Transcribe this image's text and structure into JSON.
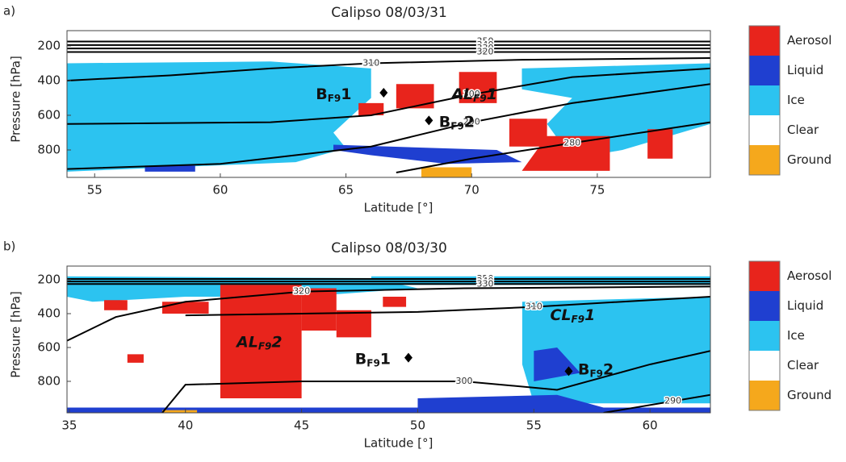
{
  "chart_data": [
    {
      "type": "curtain",
      "panel_label": "a)",
      "title": "Calipso 08/03/31",
      "xlabel": "Latitude [°]",
      "ylabel": "Pressure [hPa]",
      "xlim": [
        53.9,
        79.5
      ],
      "xticks": [
        55,
        60,
        65,
        70,
        75
      ],
      "ylim": [
        958,
        112
      ],
      "yticks": [
        200,
        400,
        600,
        800
      ],
      "legend": {
        "categories": [
          "Aerosol",
          "Liquid",
          "Ice",
          "Clear",
          "Ground"
        ],
        "colors": [
          "#e8241c",
          "#1f3fd0",
          "#2cc3f0",
          "#ffffff",
          "#f5a81c"
        ]
      },
      "regions": [
        {
          "class": 2,
          "points": [
            [
              53.9,
              300
            ],
            [
              62,
              290
            ],
            [
              66,
              330
            ],
            [
              66,
              500
            ],
            [
              64.5,
              700
            ],
            [
              65,
              790
            ],
            [
              63,
              870
            ],
            [
              58,
              900
            ],
            [
              53.9,
              925
            ]
          ]
        },
        {
          "class": 2,
          "points": [
            [
              72,
              330
            ],
            [
              79.5,
              300
            ],
            [
              79.5,
              650
            ],
            [
              76,
              800
            ],
            [
              74,
              850
            ],
            [
              73,
              650
            ],
            [
              74,
              500
            ],
            [
              72,
              450
            ]
          ]
        },
        {
          "class": 1,
          "points": [
            [
              64.5,
              770
            ],
            [
              71,
              800
            ],
            [
              72,
              870
            ],
            [
              69,
              880
            ],
            [
              66,
              830
            ],
            [
              64.5,
              800
            ]
          ]
        },
        {
          "class": 1,
          "points": [
            [
              57,
              890
            ],
            [
              59,
              890
            ],
            [
              59,
              925
            ],
            [
              57,
              925
            ]
          ]
        },
        {
          "class": 0,
          "points": [
            [
              67,
              420
            ],
            [
              68.5,
              420
            ],
            [
              68.5,
              560
            ],
            [
              67,
              560
            ]
          ]
        },
        {
          "class": 0,
          "points": [
            [
              69.5,
              350
            ],
            [
              71,
              350
            ],
            [
              71,
              530
            ],
            [
              69.5,
              530
            ]
          ]
        },
        {
          "class": 0,
          "points": [
            [
              71.5,
              620
            ],
            [
              73,
              620
            ],
            [
              73,
              780
            ],
            [
              71.5,
              780
            ]
          ]
        },
        {
          "class": 0,
          "points": [
            [
              73,
              720
            ],
            [
              75.5,
              720
            ],
            [
              75.5,
              920
            ],
            [
              72,
              920
            ]
          ]
        },
        {
          "class": 0,
          "points": [
            [
              77,
              680
            ],
            [
              78,
              680
            ],
            [
              78,
              850
            ],
            [
              77,
              850
            ]
          ]
        },
        {
          "class": 0,
          "points": [
            [
              65.5,
              530
            ],
            [
              66.5,
              530
            ],
            [
              66.5,
              600
            ],
            [
              65.5,
              600
            ]
          ]
        },
        {
          "class": 4,
          "points": [
            [
              68,
              900
            ],
            [
              70,
              900
            ],
            [
              70,
              958
            ],
            [
              68,
              958
            ]
          ]
        }
      ],
      "contours": [
        {
          "level": 350,
          "points": [
            [
              53.9,
              175
            ],
            [
              79.5,
              175
            ]
          ]
        },
        {
          "level": 340,
          "points": [
            [
              53.9,
              195
            ],
            [
              79.5,
              195
            ]
          ]
        },
        {
          "level": 330,
          "points": [
            [
              53.9,
              215
            ],
            [
              79.5,
              215
            ]
          ]
        },
        {
          "level": 320,
          "points": [
            [
              53.9,
              235
            ],
            [
              79.5,
              235
            ]
          ]
        },
        {
          "level": 310,
          "points": [
            [
              53.9,
              400
            ],
            [
              58,
              370
            ],
            [
              62,
              330
            ],
            [
              66,
              300
            ],
            [
              72,
              280
            ],
            [
              79.5,
              270
            ]
          ]
        },
        {
          "level": 300,
          "points": [
            [
              53.9,
              650
            ],
            [
              62,
              640
            ],
            [
              66,
              600
            ],
            [
              70,
              480
            ],
            [
              74,
              380
            ],
            [
              79.5,
              330
            ]
          ]
        },
        {
          "level": 290,
          "points": [
            [
              53.9,
              910
            ],
            [
              60,
              880
            ],
            [
              66,
              780
            ],
            [
              70,
              640
            ],
            [
              74,
              530
            ],
            [
              79.5,
              420
            ]
          ]
        },
        {
          "level": 280,
          "points": [
            [
              67,
              930
            ],
            [
              70,
              850
            ],
            [
              74,
              760
            ],
            [
              79.5,
              640
            ]
          ]
        }
      ],
      "annotations": [
        {
          "main": "B",
          "sub": "F9",
          "suffix": "1",
          "x": 63.8,
          "y": 480,
          "italic": false
        },
        {
          "main": "AL",
          "sub": "F9",
          "suffix": "1",
          "x": 69.2,
          "y": 480,
          "italic": true
        },
        {
          "main": "B",
          "sub": "F9",
          "suffix": "2",
          "x": 68.7,
          "y": 640,
          "italic": false
        }
      ],
      "markers": [
        [
          66.5,
          470
        ],
        [
          68.3,
          630
        ]
      ]
    },
    {
      "type": "curtain",
      "panel_label": "b)",
      "title": "Calipso 08/03/30",
      "xlabel": "Latitude [°]",
      "ylabel": "Pressure [hPa]",
      "xlim": [
        34.9,
        62.6
      ],
      "xticks": [
        35,
        40,
        45,
        50,
        55,
        60
      ],
      "ylim": [
        986,
        119
      ],
      "yticks": [
        200,
        400,
        600,
        800
      ],
      "legend": {
        "categories": [
          "Aerosol",
          "Liquid",
          "Ice",
          "Clear",
          "Ground"
        ],
        "colors": [
          "#e8241c",
          "#1f3fd0",
          "#2cc3f0",
          "#ffffff",
          "#f5a81c"
        ]
      },
      "regions": [
        {
          "class": 2,
          "points": [
            [
              34.9,
              180
            ],
            [
              48,
              190
            ],
            [
              50,
              250
            ],
            [
              45,
              300
            ],
            [
              40,
              300
            ],
            [
              36,
              330
            ],
            [
              34.9,
              300
            ]
          ]
        },
        {
          "class": 2,
          "points": [
            [
              54.5,
              330
            ],
            [
              62.6,
              300
            ],
            [
              62.6,
              930
            ],
            [
              55,
              930
            ],
            [
              54.5,
              700
            ]
          ]
        },
        {
          "class": 2,
          "points": [
            [
              48,
              180
            ],
            [
              62.6,
              180
            ],
            [
              62.6,
              230
            ],
            [
              48,
              230
            ]
          ]
        },
        {
          "class": 1,
          "points": [
            [
              34.9,
              955
            ],
            [
              62.6,
              955
            ],
            [
              62.6,
              986
            ],
            [
              34.9,
              986
            ]
          ]
        },
        {
          "class": 1,
          "points": [
            [
              50,
              900
            ],
            [
              56,
              880
            ],
            [
              58,
              955
            ],
            [
              50,
              955
            ]
          ]
        },
        {
          "class": 1,
          "points": [
            [
              55,
              620
            ],
            [
              56,
              600
            ],
            [
              57,
              750
            ],
            [
              55,
              800
            ]
          ]
        },
        {
          "class": 0,
          "points": [
            [
              41.5,
              230
            ],
            [
              45,
              230
            ],
            [
              45,
              900
            ],
            [
              41.5,
              900
            ]
          ]
        },
        {
          "class": 0,
          "points": [
            [
              39,
              330
            ],
            [
              41,
              330
            ],
            [
              41,
              400
            ],
            [
              39,
              400
            ]
          ]
        },
        {
          "class": 0,
          "points": [
            [
              45,
              250
            ],
            [
              46.5,
              250
            ],
            [
              46.5,
              500
            ],
            [
              45,
              500
            ]
          ]
        },
        {
          "class": 0,
          "points": [
            [
              46.5,
              380
            ],
            [
              48,
              380
            ],
            [
              48,
              540
            ],
            [
              46.5,
              540
            ]
          ]
        },
        {
          "class": 0,
          "points": [
            [
              37.5,
              640
            ],
            [
              38.2,
              640
            ],
            [
              38.2,
              690
            ],
            [
              37.5,
              690
            ]
          ]
        },
        {
          "class": 0,
          "points": [
            [
              48.5,
              300
            ],
            [
              49.5,
              300
            ],
            [
              49.5,
              360
            ],
            [
              48.5,
              360
            ]
          ]
        },
        {
          "class": 0,
          "points": [
            [
              36.5,
              320
            ],
            [
              37.5,
              320
            ],
            [
              37.5,
              380
            ],
            [
              36.5,
              380
            ]
          ]
        },
        {
          "class": 4,
          "points": [
            [
              39,
              970
            ],
            [
              40.5,
              970
            ],
            [
              40.5,
              986
            ],
            [
              39,
              986
            ]
          ]
        }
      ],
      "contours": [
        {
          "level": 350,
          "points": [
            [
              34.9,
              195
            ],
            [
              62.6,
              195
            ]
          ]
        },
        {
          "level": 340,
          "points": [
            [
              34.9,
              210
            ],
            [
              62.6,
              210
            ]
          ]
        },
        {
          "level": 330,
          "points": [
            [
              34.9,
              225
            ],
            [
              62.6,
              225
            ]
          ]
        },
        {
          "level": 320,
          "points": [
            [
              34.9,
              560
            ],
            [
              37,
              420
            ],
            [
              40,
              330
            ],
            [
              45,
              270
            ],
            [
              52,
              250
            ],
            [
              62.6,
              240
            ]
          ]
        },
        {
          "level": 310,
          "points": [
            [
              40,
              410
            ],
            [
              45,
              400
            ],
            [
              50,
              390
            ],
            [
              55,
              360
            ],
            [
              60,
              320
            ],
            [
              62.6,
              300
            ]
          ]
        },
        {
          "level": 300,
          "points": [
            [
              39,
              986
            ],
            [
              40,
              820
            ],
            [
              45,
              800
            ],
            [
              52,
              800
            ],
            [
              56,
              850
            ],
            [
              60,
              700
            ],
            [
              62.6,
              620
            ]
          ]
        },
        {
          "level": 290,
          "points": [
            [
              58,
              986
            ],
            [
              62.6,
              880
            ]
          ]
        }
      ],
      "annotations": [
        {
          "main": "AL",
          "sub": "F9",
          "suffix": "2",
          "x": 42.2,
          "y": 570,
          "italic": true
        },
        {
          "main": "B",
          "sub": "F9",
          "suffix": "1",
          "x": 47.3,
          "y": 670,
          "italic": false
        },
        {
          "main": "CL",
          "sub": "F9",
          "suffix": "1",
          "x": 55.7,
          "y": 410,
          "italic": true
        },
        {
          "main": "B",
          "sub": "F9",
          "suffix": "2",
          "x": 56.9,
          "y": 730,
          "italic": false
        }
      ],
      "markers": [
        [
          49.6,
          660
        ],
        [
          56.5,
          740
        ]
      ]
    }
  ]
}
